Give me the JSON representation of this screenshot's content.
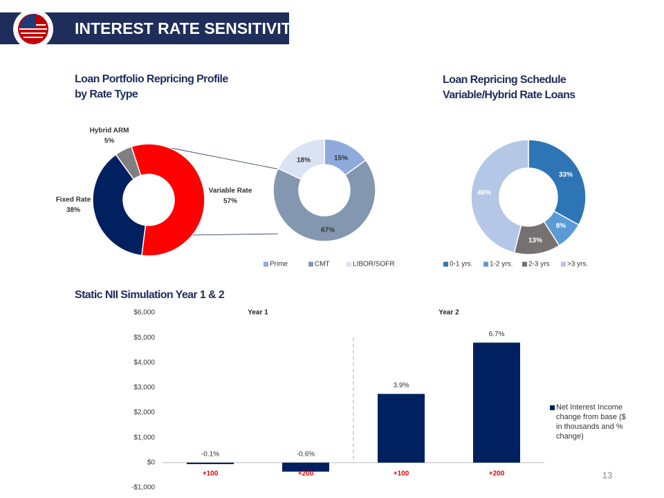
{
  "header": {
    "title": "INTEREST RATE SENSITIVITY"
  },
  "page_number": "13",
  "chart_data": [
    {
      "type": "donut",
      "title": [
        "Loan Portfolio Repricing Profile",
        "by Rate Type"
      ],
      "categories": [
        "Variable Rate",
        "Fixed Rate",
        "Hybrid ARM"
      ],
      "values": [
        57,
        38,
        5
      ],
      "value_labels": [
        "57%",
        "38%",
        "5%"
      ],
      "colors": [
        "#ff0000",
        "#002060",
        "#7f7f7f"
      ]
    },
    {
      "type": "donut",
      "categories": [
        "Prime",
        "CMT",
        "LIBOR/SOFR"
      ],
      "values": [
        15,
        67,
        18
      ],
      "value_labels": [
        "15%",
        "67%",
        "18%"
      ],
      "colors": [
        "#8faadc",
        "#8497b0",
        "#dae3f3"
      ],
      "legend": "bottom"
    },
    {
      "type": "donut",
      "title": [
        "Loan Repricing Schedule",
        "Variable/Hybrid Rate Loans"
      ],
      "categories": [
        "0-1 yrs.",
        "1-2 yrs.",
        "2-3 yrs",
        ">3 yrs."
      ],
      "values": [
        33,
        8,
        13,
        46
      ],
      "value_labels": [
        "33%",
        "8%",
        "13%",
        "46%"
      ],
      "colors": [
        "#2e75b6",
        "#5b9bd5",
        "#767171",
        "#b4c7e7"
      ],
      "legend": "bottom"
    },
    {
      "type": "bar",
      "title": "Static NII Simulation Year 1 & 2",
      "groups": [
        "Year 1",
        "Year 2"
      ],
      "categories": [
        "+100",
        "+200",
        "+100",
        "+200"
      ],
      "series": [
        {
          "name": "Net Interest Income change from base ($ in thousands and % change)",
          "color": "#002060",
          "values": [
            -60,
            -360,
            2750,
            4800
          ]
        }
      ],
      "annotations": [
        "-0.1%",
        "-0.6%",
        "3.9%",
        "6.7%"
      ],
      "ylim": [
        -1000,
        6000
      ],
      "yticks": [
        {
          "value": -1000,
          "label": "-$1,000"
        },
        {
          "value": 0,
          "label": "$0"
        },
        {
          "value": 1000,
          "label": "$1,000"
        },
        {
          "value": 2000,
          "label": "$2,000"
        },
        {
          "value": 3000,
          "label": "$3,000"
        },
        {
          "value": 4000,
          "label": "$4,000"
        },
        {
          "value": 5000,
          "label": "$5,000"
        },
        {
          "value": 6000,
          "label": "$6,000"
        }
      ],
      "legend": "right"
    }
  ]
}
